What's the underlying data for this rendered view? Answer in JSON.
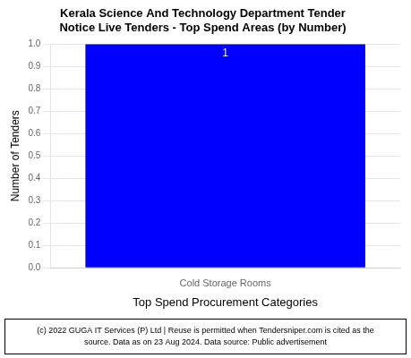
{
  "chart_data": {
    "type": "bar",
    "title": [
      "Kerala Science And Technology Department Tender",
      "Notice Live Tenders - Top Spend Areas (by Number)"
    ],
    "categories": [
      "Cold Storage Rooms"
    ],
    "values": [
      1
    ],
    "color": "#0000FF",
    "x_label": "Top Spend Procurement Categories",
    "y_label": "Number of Tenders",
    "ylim": [
      0.0,
      1.0
    ],
    "yticks": [
      {
        "value": 0.0,
        "label": "0.0"
      },
      0.1,
      0.2,
      0.3,
      0.4,
      0.5,
      0.6,
      0.7,
      0.8,
      0.9,
      {
        "value": 1.0,
        "label": "1.0"
      }
    ],
    "grid": true,
    "data_labels": true,
    "annotations": [
      "(c) 2022 GUGA IT Services (P) Ltd | Reuse is permitted when Tendersniper.com is cited as the",
      "source. Data as on 23 Aug 2024. Data source: Public advertisement"
    ]
  }
}
